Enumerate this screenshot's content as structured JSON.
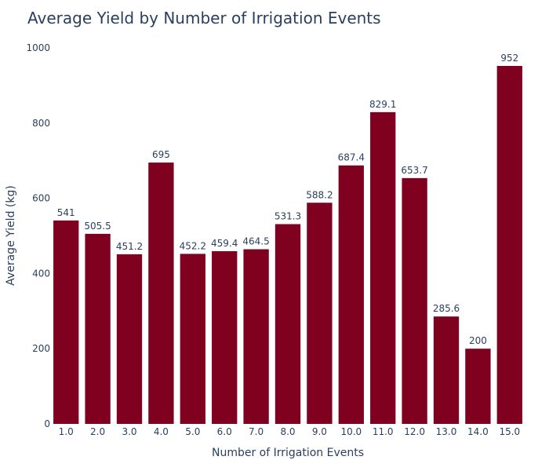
{
  "chart_data": {
    "type": "bar",
    "title": "Average Yield by Number of Irrigation Events",
    "xlabel": "Number of Irrigation Events",
    "ylabel": "Average Yield (kg)",
    "categories": [
      "1.0",
      "2.0",
      "3.0",
      "4.0",
      "5.0",
      "6.0",
      "7.0",
      "8.0",
      "9.0",
      "10.0",
      "11.0",
      "12.0",
      "13.0",
      "14.0",
      "15.0"
    ],
    "values": [
      541,
      505.5,
      451.2,
      695,
      452.2,
      459.4,
      464.5,
      531.3,
      588.2,
      687.4,
      829.1,
      653.7,
      285.6,
      200,
      952
    ],
    "data_labels": [
      "541",
      "505.5",
      "451.2",
      "695",
      "452.2",
      "459.4",
      "464.5",
      "531.3",
      "588.2",
      "687.4",
      "829.1",
      "653.7",
      "285.6",
      "200",
      "952"
    ],
    "ylim": [
      0,
      1000
    ],
    "yticks": [
      0,
      200,
      400,
      600,
      800,
      1000
    ],
    "grid": false,
    "legend": "none",
    "bar_color": "#800020",
    "text_color": "#2a3f5f"
  }
}
